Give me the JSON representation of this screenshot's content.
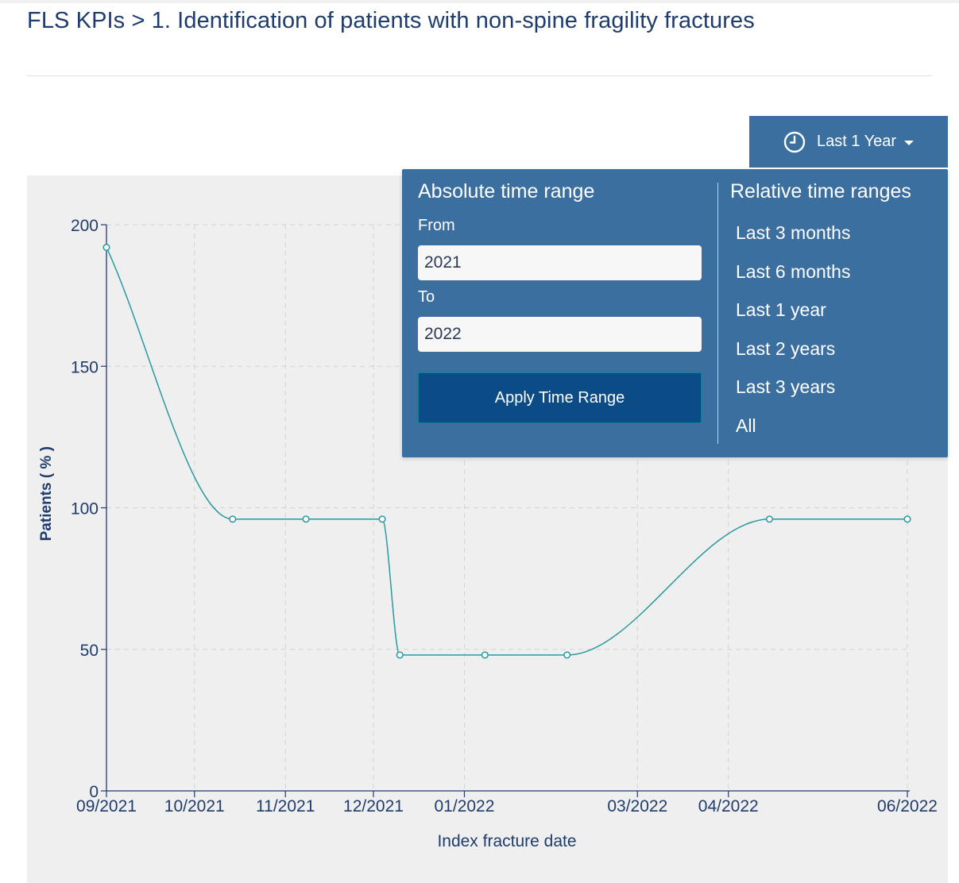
{
  "header": {
    "title": "FLS KPIs > 1. Identification of patients with non-spine fragility fractures"
  },
  "time_button": {
    "label": "Last 1 Year",
    "icon": "clock-icon"
  },
  "dropdown": {
    "absolute_heading": "Absolute time range",
    "from_label": "From",
    "from_value": "2021",
    "to_label": "To",
    "to_value": "2022",
    "apply_label": "Apply Time Range",
    "relative_heading": "Relative time ranges",
    "relative_options": [
      "Last 3 months",
      "Last 6 months",
      "Last 1 year",
      "Last 2 years",
      "Last 3 years",
      "All"
    ]
  },
  "colors": {
    "accent": "#3a6fa0",
    "line": "#2a9aa0",
    "title": "#1f3c6e"
  },
  "chart_data": {
    "type": "line",
    "xlabel": "Index fracture date",
    "ylabel": "Patients ( % )",
    "ylim": [
      0,
      200
    ],
    "yticks": [
      0,
      50,
      100,
      150,
      200
    ],
    "x_ticks": [
      "09/2021",
      "10/2021",
      "11/2021",
      "12/2021",
      "01/2022",
      "03/2022",
      "04/2022",
      "06/2022"
    ],
    "grid": true,
    "series": [
      {
        "points": [
          {
            "x": "2021-09-01",
            "y": 192
          },
          {
            "x": "2021-10-14",
            "y": 96
          },
          {
            "x": "2021-11-08",
            "y": 96
          },
          {
            "x": "2021-12-04",
            "y": 96
          },
          {
            "x": "2021-12-10",
            "y": 48
          },
          {
            "x": "2022-01-08",
            "y": 48
          },
          {
            "x": "2022-02-05",
            "y": 48
          },
          {
            "x": "2022-04-15",
            "y": 96
          },
          {
            "x": "2022-06-01",
            "y": 96
          }
        ]
      }
    ]
  }
}
